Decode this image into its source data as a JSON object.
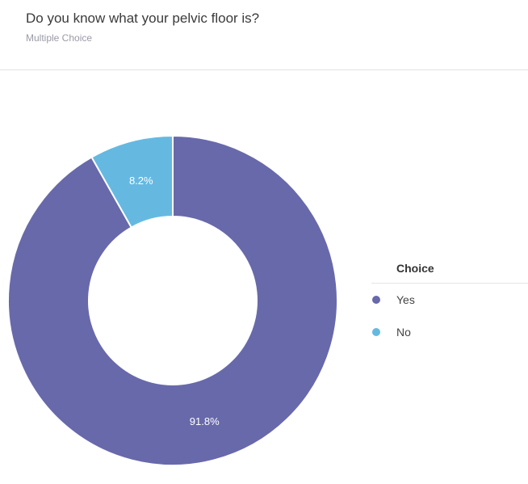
{
  "question": {
    "title": "Do you know what your pelvic floor is?",
    "type_label": "Multiple Choice"
  },
  "chart_data": {
    "type": "pie",
    "donut": true,
    "categories": [
      "Yes",
      "No"
    ],
    "values": [
      91.8,
      8.2
    ],
    "value_labels": [
      "91.8%",
      "8.2%"
    ],
    "colors": [
      "#6869ab",
      "#65b9e1"
    ],
    "legend_title": "Choice",
    "legend_position": "right"
  }
}
